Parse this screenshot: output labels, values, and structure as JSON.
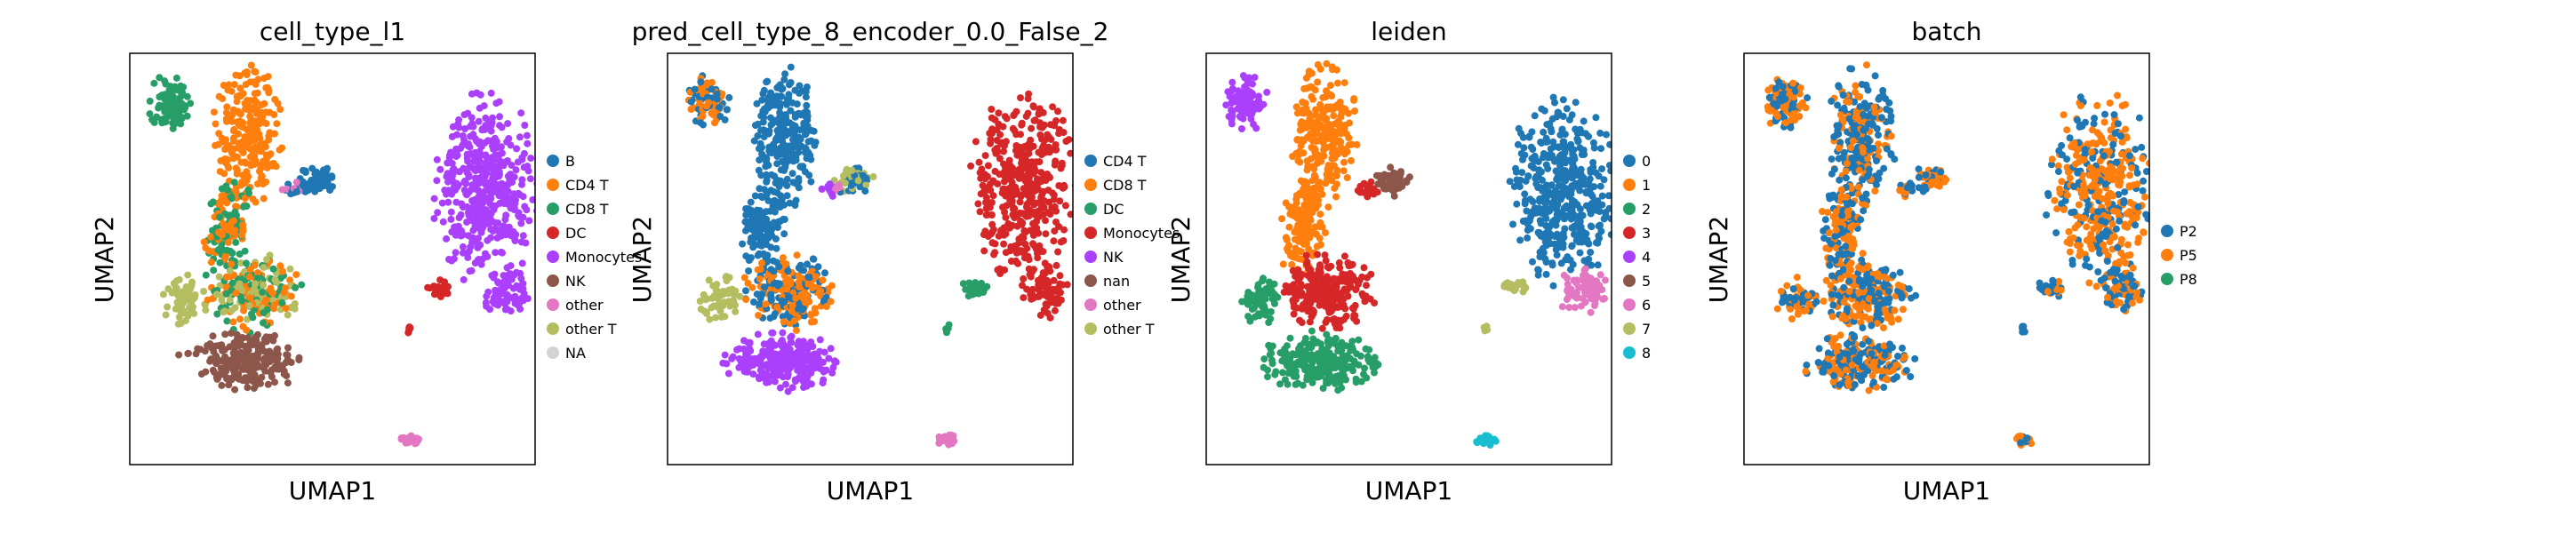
{
  "chart_data": [
    {
      "type": "scatter",
      "title": "cell_type_l1",
      "xlabel": "UMAP1",
      "ylabel": "UMAP2",
      "legend_position": "right",
      "categories": [
        {
          "name": "B",
          "color": "#1f77b4"
        },
        {
          "name": "CD4 T",
          "color": "#ff7f0e"
        },
        {
          "name": "CD8 T",
          "color": "#279e68"
        },
        {
          "name": "DC",
          "color": "#d62728"
        },
        {
          "name": "Monocytes",
          "color": "#aa40fc"
        },
        {
          "name": "NK",
          "color": "#8c564b"
        },
        {
          "name": "other",
          "color": "#e377c2"
        },
        {
          "name": "other T",
          "color": "#b5bd61"
        },
        {
          "name": "NA",
          "color": "#d3d3d3"
        }
      ]
    },
    {
      "type": "scatter",
      "title": "pred_cell_type_8_encoder_0.0_False_2",
      "xlabel": "UMAP1",
      "ylabel": "UMAP2",
      "legend_position": "right",
      "categories": [
        {
          "name": "CD4 T",
          "color": "#1f77b4"
        },
        {
          "name": "CD8 T",
          "color": "#ff7f0e"
        },
        {
          "name": "DC",
          "color": "#279e68"
        },
        {
          "name": "Monocytes",
          "color": "#d62728"
        },
        {
          "name": "NK",
          "color": "#aa40fc"
        },
        {
          "name": "nan",
          "color": "#8c564b"
        },
        {
          "name": "other",
          "color": "#e377c2"
        },
        {
          "name": "other T",
          "color": "#b5bd61"
        }
      ]
    },
    {
      "type": "scatter",
      "title": "leiden",
      "xlabel": "UMAP1",
      "ylabel": "UMAP2",
      "legend_position": "right",
      "categories": [
        {
          "name": "0",
          "color": "#1f77b4"
        },
        {
          "name": "1",
          "color": "#ff7f0e"
        },
        {
          "name": "2",
          "color": "#279e68"
        },
        {
          "name": "3",
          "color": "#d62728"
        },
        {
          "name": "4",
          "color": "#aa40fc"
        },
        {
          "name": "5",
          "color": "#8c564b"
        },
        {
          "name": "6",
          "color": "#e377c2"
        },
        {
          "name": "7",
          "color": "#b5bd61"
        },
        {
          "name": "8",
          "color": "#17becf"
        }
      ]
    },
    {
      "type": "scatter",
      "title": "batch",
      "xlabel": "UMAP1",
      "ylabel": "UMAP2",
      "legend_position": "right",
      "categories": [
        {
          "name": "P2",
          "color": "#1f77b4"
        },
        {
          "name": "P5",
          "color": "#ff7f0e"
        },
        {
          "name": "P8",
          "color": "#279e68"
        }
      ]
    }
  ]
}
